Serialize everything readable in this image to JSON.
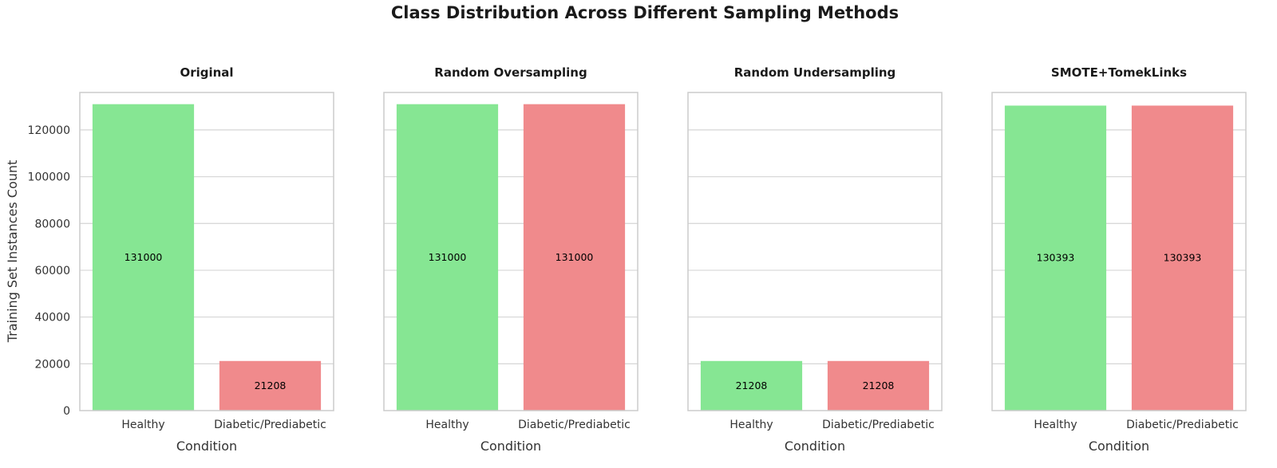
{
  "chart_data": {
    "type": "bar",
    "title": "Class Distribution Across Different Sampling Methods",
    "ylabel": "Training Set Instances Count",
    "xlabel": "Condition",
    "categories": [
      "Healthy",
      "Diabetic/Prediabetic"
    ],
    "ylim": [
      0,
      136000
    ],
    "yticks": [
      0,
      20000,
      40000,
      60000,
      80000,
      100000,
      120000
    ],
    "grid": true,
    "colors": {
      "Healthy": "#86e693",
      "Diabetic/Prediabetic": "#f08a8c"
    },
    "panels": [
      {
        "title": "Original",
        "values": [
          131000,
          21208
        ],
        "labels": [
          "131000",
          "21208"
        ]
      },
      {
        "title": "Random Oversampling",
        "values": [
          131000,
          131000
        ],
        "labels": [
          "131000",
          "131000"
        ]
      },
      {
        "title": "Random Undersampling",
        "values": [
          21208,
          21208
        ],
        "labels": [
          "21208",
          "21208"
        ]
      },
      {
        "title": "SMOTE+TomekLinks",
        "values": [
          130393,
          130393
        ],
        "labels": [
          "130393",
          "130393"
        ]
      }
    ]
  }
}
